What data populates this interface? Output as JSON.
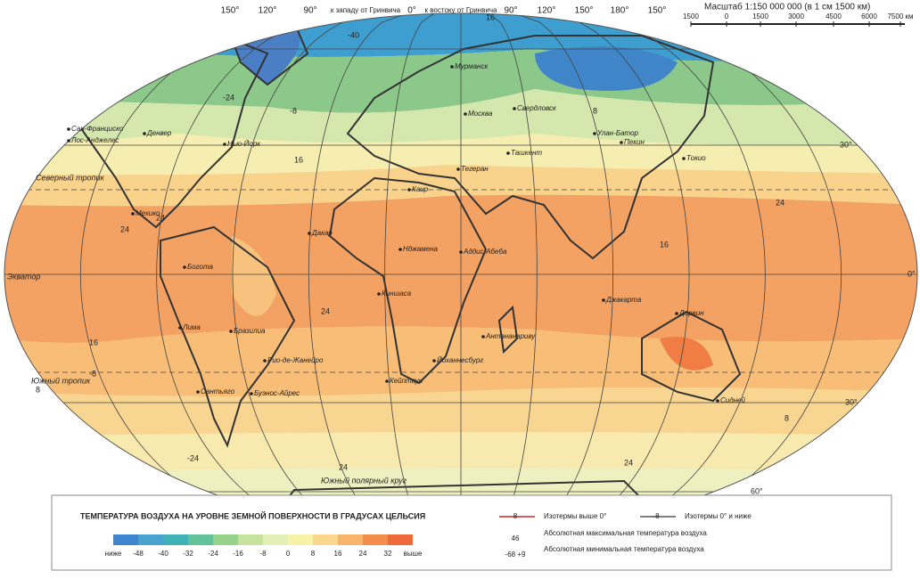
{
  "header": {
    "longitudes": [
      "150°",
      "120°",
      "90°",
      "к западу от Гринвича",
      "0°",
      "к востоку от Гринвича",
      "90°",
      "120°",
      "150°",
      "180°",
      "150°"
    ],
    "scale": {
      "title": "Масштаб 1:150 000 000 (в 1 см 1500 км)",
      "ticks": [
        "1500",
        "0",
        "1500",
        "3000",
        "4500",
        "6000",
        "7500 км"
      ]
    }
  },
  "map": {
    "latitudes": [
      "30°",
      "0°",
      "30°",
      "60°"
    ],
    "lines": [
      "Северный тропик",
      "Экватор",
      "Южный тропик",
      "Южный полярный круг"
    ],
    "cities": [
      "Сан-Франциско",
      "Лос-Анджелес",
      "Денвер",
      "Нью-Йорк",
      "Мехико",
      "Богота",
      "Лима",
      "Бразилиа",
      "Рио-де-Жанейро",
      "Сантьяго",
      "Буэнос-Айрес",
      "Дакар",
      "Каир",
      "Нджамена",
      "Аддис-Абеба",
      "Киншаса",
      "Антананариву",
      "Йоханнесбург",
      "Кейптаун",
      "Москва",
      "Свердловск",
      "Мурманск",
      "Тегеран",
      "Ташкент",
      "Улан-Батор",
      "Пекин",
      "Токио",
      "Джакарта",
      "Дарвин",
      "Сидней"
    ],
    "isotherm_labels": [
      "-40",
      "-24",
      "-8",
      "8",
      "16",
      "24",
      "24",
      "24",
      "24",
      "16",
      "8",
      "-8",
      "-24",
      "24",
      "16",
      "8",
      "24",
      "16"
    ]
  },
  "legend": {
    "title": "ТЕМПЕРАТУРА ВОЗДУХА НА УРОВНЕ ЗЕМНОЙ ПОВЕРХНОСТИ В ГРАДУСАХ ЦЕЛЬСИЯ",
    "scale_labels": [
      "ниже",
      "-48",
      "-40",
      "-32",
      "-24",
      "-16",
      "-8",
      "0",
      "8",
      "16",
      "24",
      "32",
      "выше"
    ],
    "colors": [
      "#3d86cf",
      "#4aa2cf",
      "#3fb2b8",
      "#63c29a",
      "#97d28a",
      "#c6e29c",
      "#e4efb6",
      "#f8f1a8",
      "#fbd78e",
      "#f7b46a",
      "#f38d4c",
      "#ee6a3a"
    ],
    "keys": [
      {
        "sample": "8",
        "text": "Изотермы выше 0°"
      },
      {
        "sample": "-8",
        "text": "Изотермы 0° и ниже"
      },
      {
        "sample": "46",
        "text": "Абсолютная максимальная температура воздуха"
      },
      {
        "sample": "-68 +9",
        "text": "Абсолютная минимальная температура воздуха"
      }
    ]
  }
}
